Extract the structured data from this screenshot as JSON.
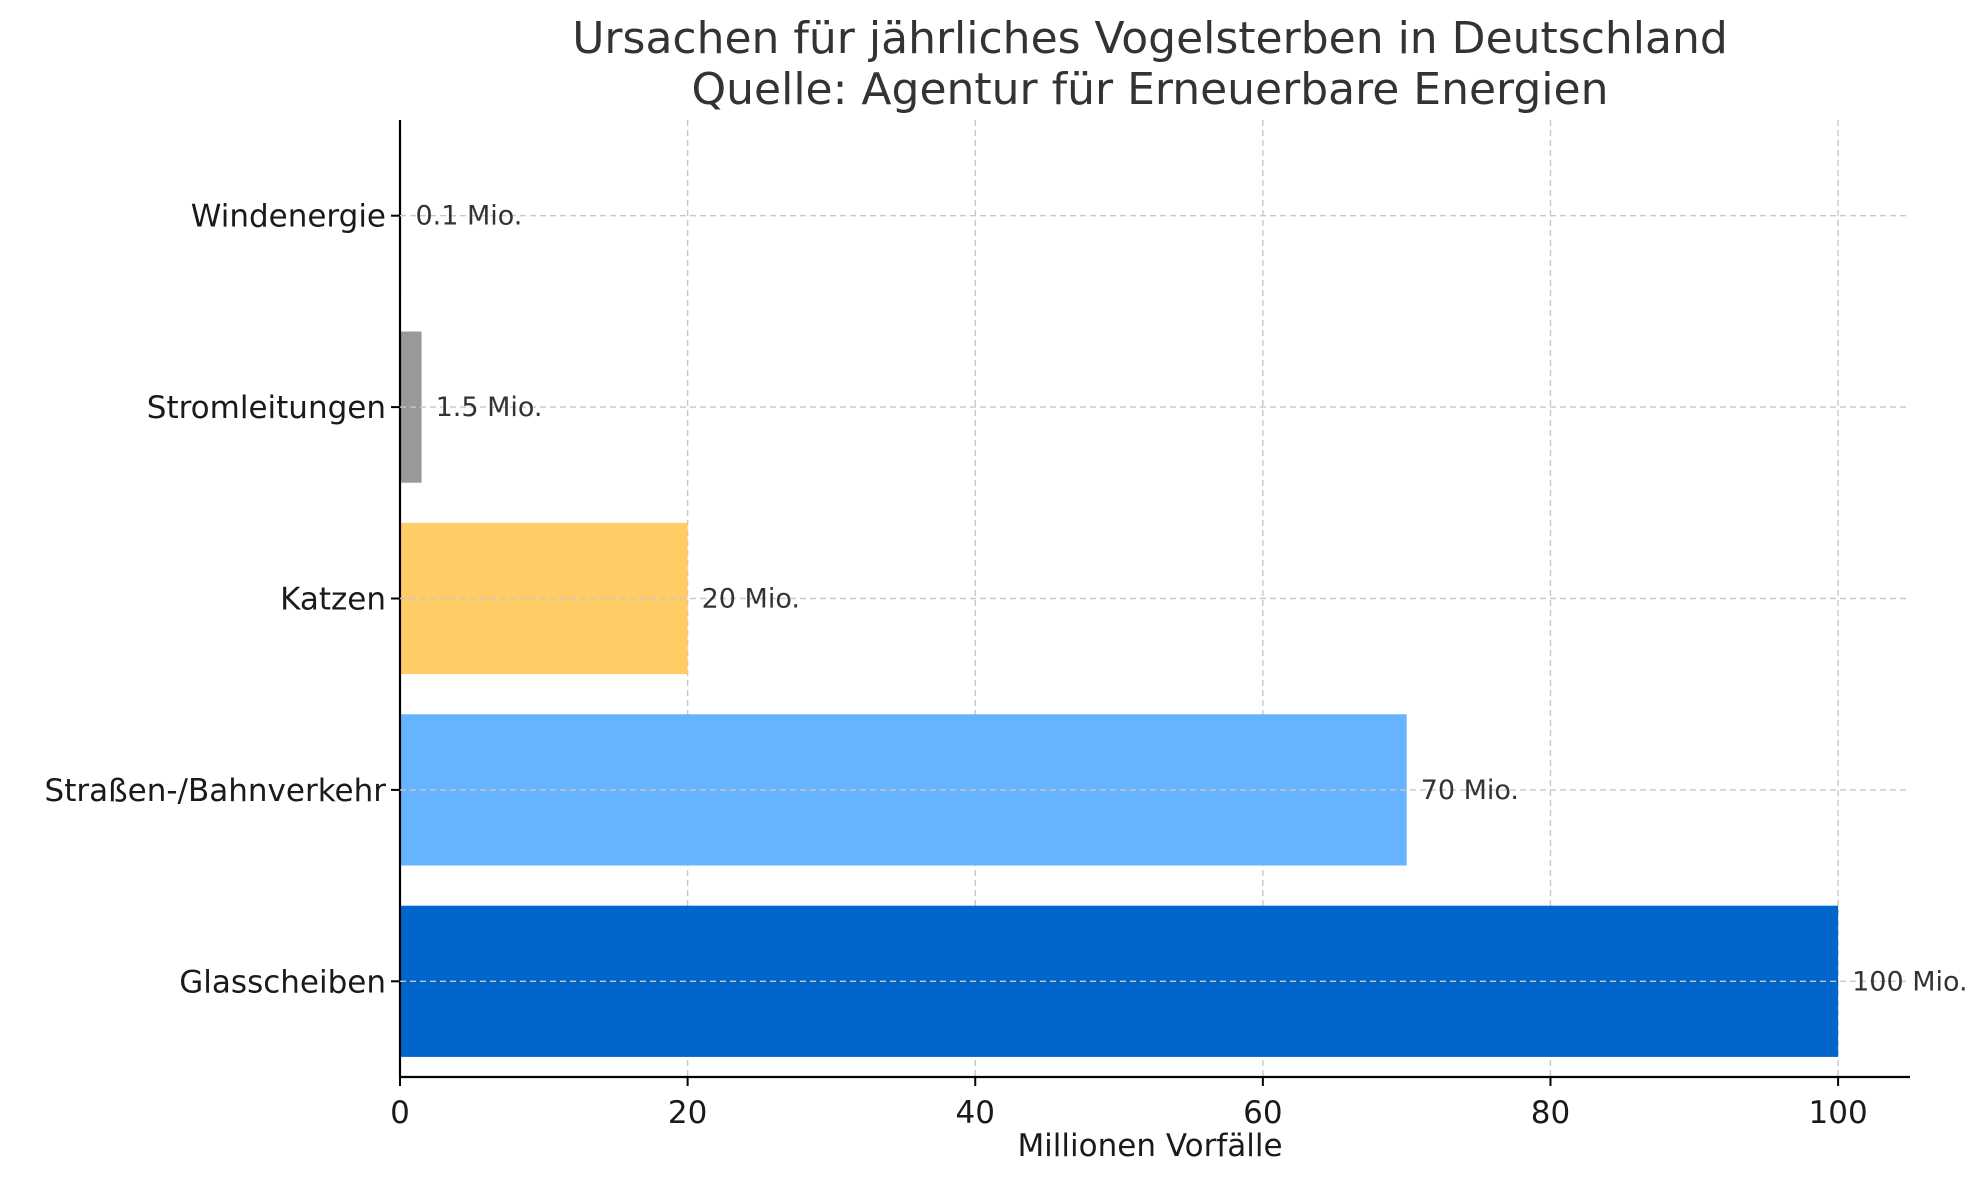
{
  "chart_data": {
    "type": "bar",
    "orientation": "horizontal",
    "title": "Ursachen für jährliches Vogelsterben in Deutschland",
    "subtitle": "Quelle: Agentur für Erneuerbare Energien",
    "xlabel": "Millionen Vorfälle",
    "ylabel": "",
    "xlim": [
      0,
      105
    ],
    "xticks": [
      0,
      20,
      40,
      60,
      80,
      100
    ],
    "grid": true,
    "categories": [
      "Glasscheiben",
      "Straßen-/Bahnverkehr",
      "Katzen",
      "Stromleitungen",
      "Windenergie"
    ],
    "values": [
      100,
      70,
      20,
      1.5,
      0.1
    ],
    "data_labels": [
      "100 Mio.",
      "70 Mio.",
      "20 Mio.",
      "1.5 Mio.",
      "0.1 Mio."
    ],
    "colors": [
      "#0066cc",
      "#66b3ff",
      "#ffcc66",
      "#999999",
      "#f2f2f2"
    ]
  }
}
